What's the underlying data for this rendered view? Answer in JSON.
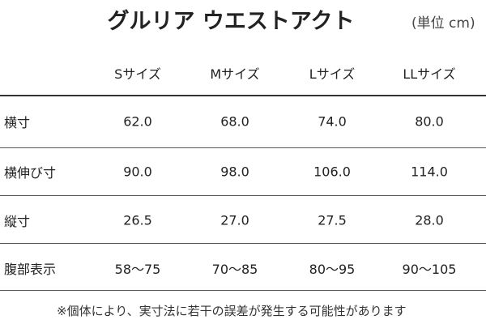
{
  "header": {
    "title": "グルリア ウエストアクト",
    "unit": "(単位 cm)"
  },
  "table": {
    "columns": [
      "Sサイズ",
      "Mサイズ",
      "Lサイズ",
      "LLサイズ"
    ],
    "rows": [
      [
        "横寸",
        "62.0",
        "68.0",
        "74.0",
        "80.0"
      ],
      [
        "横伸び寸",
        "90.0",
        "98.0",
        "106.0",
        "114.0"
      ],
      [
        "縦寸",
        "26.5",
        "27.0",
        "27.5",
        "28.0"
      ],
      [
        "腹部表示",
        "58〜75",
        "70〜85",
        "80〜95",
        "90〜105"
      ]
    ]
  },
  "footnote": "※個体により、実寸法に若干の誤差が発生する可能性があります"
}
